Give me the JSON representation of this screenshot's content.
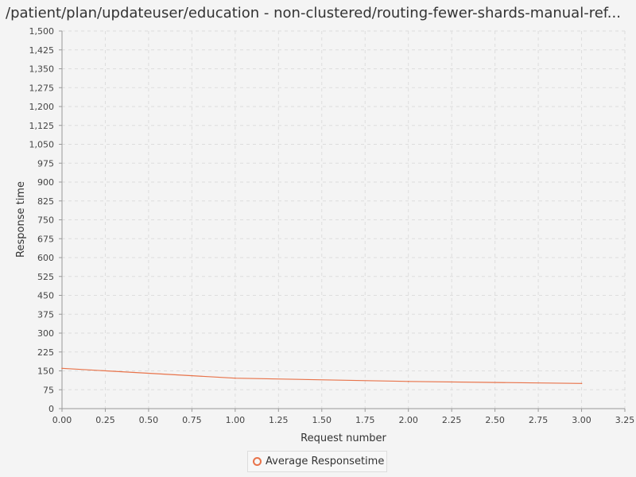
{
  "title": "/patient/plan/updateuser/education - non-clustered/routing-fewer-shards-manual-ref...",
  "colors": {
    "series": "#e8734a",
    "grid": "#dddddd",
    "axis": "#999999"
  },
  "chart_data": {
    "type": "line",
    "xlabel": "Request number",
    "ylabel": "Response time",
    "xlim": [
      0,
      3.25
    ],
    "ylim": [
      0,
      1500
    ],
    "xticks": [
      "0.00",
      "0.25",
      "0.50",
      "0.75",
      "1.00",
      "1.25",
      "1.50",
      "1.75",
      "2.00",
      "2.25",
      "2.50",
      "2.75",
      "3.00",
      "3.25"
    ],
    "yticks": [
      "0",
      "75",
      "150",
      "225",
      "300",
      "375",
      "450",
      "525",
      "600",
      "675",
      "750",
      "825",
      "900",
      "975",
      "1,050",
      "1,125",
      "1,200",
      "1,275",
      "1,350",
      "1,425",
      "1,500"
    ],
    "grid": true,
    "legend_position": "bottom-center",
    "series": [
      {
        "name": "Average Responsetime",
        "x": [
          0,
          1,
          2,
          3
        ],
        "y": [
          160,
          121,
          108,
          100
        ]
      }
    ]
  }
}
